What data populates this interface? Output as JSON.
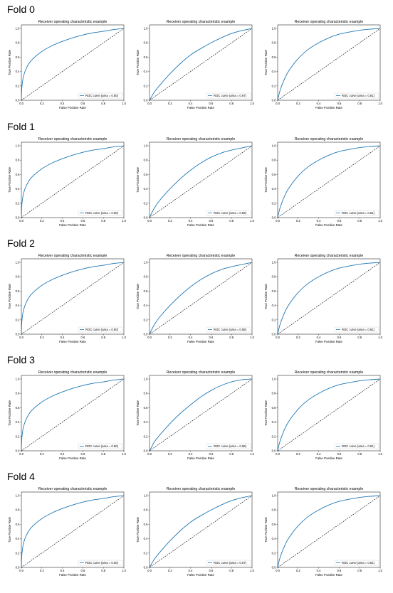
{
  "panels": [
    {
      "label": "Fold 0"
    },
    {
      "label": "Fold 1"
    },
    {
      "label": "Fold 2"
    },
    {
      "label": "Fold 3"
    },
    {
      "label": "Fold 4"
    }
  ],
  "colors": {
    "roc": "#1f77b4",
    "diagonal": "#000000"
  },
  "chart_data": [
    {
      "type": "line",
      "fold": "Fold 0",
      "title": "Receiver operating characteristic example",
      "xlabel": "False Positive Rate",
      "ylabel": "True Positive Rate",
      "xlim": [
        0,
        1
      ],
      "ylim": [
        0,
        1.05
      ],
      "legend": "lower right",
      "legend_label": "ROC curve (area = 0.80)",
      "x": [
        0,
        0.005,
        0.02,
        0.05,
        0.1,
        0.2,
        0.3,
        0.4,
        0.5,
        0.6,
        0.7,
        0.8,
        0.9,
        1.0
      ],
      "y": [
        0,
        0.18,
        0.33,
        0.45,
        0.56,
        0.68,
        0.76,
        0.82,
        0.87,
        0.91,
        0.94,
        0.96,
        0.985,
        1.0
      ]
    },
    {
      "type": "line",
      "fold": "Fold 0",
      "title": "Receiver operating characteristic example",
      "xlabel": "False Positive Rate",
      "ylabel": "True Positive Rate",
      "xlim": [
        0,
        1
      ],
      "ylim": [
        0,
        1.05
      ],
      "legend": "lower right",
      "legend_label": "ROC curve (area = 0.67)",
      "x": [
        0,
        0.02,
        0.05,
        0.1,
        0.2,
        0.3,
        0.4,
        0.5,
        0.6,
        0.7,
        0.8,
        0.9,
        1.0
      ],
      "y": [
        0,
        0.05,
        0.12,
        0.21,
        0.37,
        0.51,
        0.63,
        0.72,
        0.8,
        0.87,
        0.93,
        0.97,
        1.0
      ]
    },
    {
      "type": "line",
      "fold": "Fold 0",
      "title": "Receiver operating characteristic example",
      "xlabel": "False Positive Rate",
      "ylabel": "True Positive Rate",
      "xlim": [
        0,
        1
      ],
      "ylim": [
        0,
        1.05
      ],
      "legend": "lower right",
      "legend_label": "ROC curve (area = 0.81)",
      "x": [
        0,
        0.02,
        0.05,
        0.1,
        0.2,
        0.3,
        0.4,
        0.5,
        0.6,
        0.7,
        0.8,
        0.9,
        1.0
      ],
      "y": [
        0,
        0.12,
        0.24,
        0.39,
        0.58,
        0.71,
        0.8,
        0.87,
        0.92,
        0.95,
        0.975,
        0.99,
        1.0
      ]
    },
    {
      "type": "line",
      "fold": "Fold 1",
      "title": "Receiver operating characteristic example",
      "xlabel": "False Positive Rate",
      "ylabel": "True Positive Rate",
      "xlim": [
        0,
        1
      ],
      "ylim": [
        0,
        1.05
      ],
      "legend": "lower right",
      "legend_label": "ROC curve (area = 0.80)",
      "x": [
        0,
        0.005,
        0.02,
        0.05,
        0.1,
        0.2,
        0.3,
        0.4,
        0.5,
        0.6,
        0.7,
        0.8,
        0.9,
        1.0
      ],
      "y": [
        0,
        0.18,
        0.33,
        0.45,
        0.56,
        0.68,
        0.76,
        0.82,
        0.87,
        0.91,
        0.94,
        0.96,
        0.985,
        1.0
      ]
    },
    {
      "type": "line",
      "fold": "Fold 1",
      "title": "Receiver operating characteristic example",
      "xlabel": "False Positive Rate",
      "ylabel": "True Positive Rate",
      "xlim": [
        0,
        1
      ],
      "ylim": [
        0,
        1.05
      ],
      "legend": "lower right",
      "legend_label": "ROC curve (area = 0.69)",
      "x": [
        0,
        0.02,
        0.05,
        0.1,
        0.2,
        0.3,
        0.4,
        0.5,
        0.6,
        0.7,
        0.8,
        0.9,
        1.0
      ],
      "y": [
        0,
        0.06,
        0.14,
        0.24,
        0.4,
        0.54,
        0.66,
        0.76,
        0.84,
        0.9,
        0.94,
        0.97,
        1.0
      ]
    },
    {
      "type": "line",
      "fold": "Fold 1",
      "title": "Receiver operating characteristic example",
      "xlabel": "False Positive Rate",
      "ylabel": "True Positive Rate",
      "xlim": [
        0,
        1
      ],
      "ylim": [
        0,
        1.05
      ],
      "legend": "lower right",
      "legend_label": "ROC curve (area = 0.81)",
      "x": [
        0,
        0.02,
        0.05,
        0.1,
        0.2,
        0.3,
        0.4,
        0.5,
        0.6,
        0.7,
        0.8,
        0.9,
        1.0
      ],
      "y": [
        0,
        0.12,
        0.24,
        0.39,
        0.58,
        0.71,
        0.8,
        0.87,
        0.92,
        0.95,
        0.975,
        0.99,
        1.0
      ]
    },
    {
      "type": "line",
      "fold": "Fold 2",
      "title": "Receiver operating characteristic example",
      "xlabel": "False Positive Rate",
      "ylabel": "True Positive Rate",
      "xlim": [
        0,
        1
      ],
      "ylim": [
        0,
        1.05
      ],
      "legend": "lower right",
      "legend_label": "ROC curve (area = 0.80)",
      "x": [
        0,
        0.005,
        0.02,
        0.05,
        0.1,
        0.2,
        0.3,
        0.4,
        0.5,
        0.6,
        0.7,
        0.8,
        0.9,
        1.0
      ],
      "y": [
        0,
        0.18,
        0.33,
        0.45,
        0.56,
        0.68,
        0.76,
        0.82,
        0.87,
        0.91,
        0.94,
        0.96,
        0.985,
        1.0
      ]
    },
    {
      "type": "line",
      "fold": "Fold 2",
      "title": "Receiver operating characteristic example",
      "xlabel": "False Positive Rate",
      "ylabel": "True Positive Rate",
      "xlim": [
        0,
        1
      ],
      "ylim": [
        0,
        1.05
      ],
      "legend": "lower right",
      "legend_label": "ROC curve (area = 0.69)",
      "x": [
        0,
        0.02,
        0.05,
        0.1,
        0.2,
        0.3,
        0.4,
        0.5,
        0.6,
        0.7,
        0.8,
        0.9,
        1.0
      ],
      "y": [
        0,
        0.06,
        0.14,
        0.24,
        0.4,
        0.54,
        0.66,
        0.76,
        0.84,
        0.9,
        0.94,
        0.97,
        1.0
      ]
    },
    {
      "type": "line",
      "fold": "Fold 2",
      "title": "Receiver operating characteristic example",
      "xlabel": "False Positive Rate",
      "ylabel": "True Positive Rate",
      "xlim": [
        0,
        1
      ],
      "ylim": [
        0,
        1.05
      ],
      "legend": "lower right",
      "legend_label": "ROC curve (area = 0.81)",
      "x": [
        0,
        0.02,
        0.05,
        0.1,
        0.2,
        0.3,
        0.4,
        0.5,
        0.6,
        0.7,
        0.8,
        0.9,
        1.0
      ],
      "y": [
        0,
        0.12,
        0.24,
        0.39,
        0.58,
        0.71,
        0.8,
        0.87,
        0.92,
        0.95,
        0.975,
        0.99,
        1.0
      ]
    },
    {
      "type": "line",
      "fold": "Fold 3",
      "title": "Receiver operating characteristic example",
      "xlabel": "False Positive Rate",
      "ylabel": "True Positive Rate",
      "xlim": [
        0,
        1
      ],
      "ylim": [
        0,
        1.05
      ],
      "legend": "lower right",
      "legend_label": "ROC curve (area = 0.80)",
      "x": [
        0,
        0.005,
        0.02,
        0.05,
        0.1,
        0.2,
        0.3,
        0.4,
        0.5,
        0.6,
        0.7,
        0.8,
        0.9,
        1.0
      ],
      "y": [
        0,
        0.18,
        0.33,
        0.45,
        0.56,
        0.68,
        0.76,
        0.82,
        0.87,
        0.91,
        0.94,
        0.96,
        0.985,
        1.0
      ]
    },
    {
      "type": "line",
      "fold": "Fold 3",
      "title": "Receiver operating characteristic example",
      "xlabel": "False Positive Rate",
      "ylabel": "True Positive Rate",
      "xlim": [
        0,
        1
      ],
      "ylim": [
        0,
        1.05
      ],
      "legend": "lower right",
      "legend_label": "ROC curve (area = 0.68)",
      "x": [
        0,
        0.02,
        0.05,
        0.1,
        0.2,
        0.3,
        0.4,
        0.5,
        0.6,
        0.7,
        0.8,
        0.9,
        1.0
      ],
      "y": [
        0,
        0.05,
        0.13,
        0.22,
        0.38,
        0.52,
        0.64,
        0.75,
        0.84,
        0.91,
        0.96,
        0.99,
        1.0
      ]
    },
    {
      "type": "line",
      "fold": "Fold 3",
      "title": "Receiver operating characteristic example",
      "xlabel": "False Positive Rate",
      "ylabel": "True Positive Rate",
      "xlim": [
        0,
        1
      ],
      "ylim": [
        0,
        1.05
      ],
      "legend": "lower right",
      "legend_label": "ROC curve (area = 0.81)",
      "x": [
        0,
        0.02,
        0.05,
        0.1,
        0.2,
        0.3,
        0.4,
        0.5,
        0.6,
        0.7,
        0.8,
        0.9,
        1.0
      ],
      "y": [
        0,
        0.12,
        0.24,
        0.39,
        0.58,
        0.71,
        0.8,
        0.87,
        0.92,
        0.95,
        0.975,
        0.99,
        1.0
      ]
    },
    {
      "type": "line",
      "fold": "Fold 4",
      "title": "Receiver operating characteristic example",
      "xlabel": "False Positive Rate",
      "ylabel": "True Positive Rate",
      "xlim": [
        0,
        1
      ],
      "ylim": [
        0,
        1.05
      ],
      "legend": "lower right",
      "legend_label": "ROC curve (area = 0.80)",
      "x": [
        0,
        0.005,
        0.02,
        0.05,
        0.1,
        0.2,
        0.3,
        0.4,
        0.5,
        0.6,
        0.7,
        0.8,
        0.9,
        1.0
      ],
      "y": [
        0,
        0.18,
        0.33,
        0.45,
        0.56,
        0.68,
        0.76,
        0.82,
        0.87,
        0.91,
        0.94,
        0.96,
        0.985,
        1.0
      ]
    },
    {
      "type": "line",
      "fold": "Fold 4",
      "title": "Receiver operating characteristic example",
      "xlabel": "False Positive Rate",
      "ylabel": "True Positive Rate",
      "xlim": [
        0,
        1
      ],
      "ylim": [
        0,
        1.05
      ],
      "legend": "lower right",
      "legend_label": "ROC curve (area = 0.67)",
      "x": [
        0,
        0.02,
        0.05,
        0.1,
        0.2,
        0.3,
        0.4,
        0.5,
        0.6,
        0.7,
        0.8,
        0.9,
        1.0
      ],
      "y": [
        0,
        0.05,
        0.12,
        0.21,
        0.37,
        0.51,
        0.63,
        0.72,
        0.8,
        0.87,
        0.93,
        0.97,
        1.0
      ]
    },
    {
      "type": "line",
      "fold": "Fold 4",
      "title": "Receiver operating characteristic example",
      "xlabel": "False Positive Rate",
      "ylabel": "True Positive Rate",
      "xlim": [
        0,
        1
      ],
      "ylim": [
        0,
        1.05
      ],
      "legend": "lower right",
      "legend_label": "ROC curve (area = 0.81)",
      "x": [
        0,
        0.02,
        0.05,
        0.1,
        0.2,
        0.3,
        0.4,
        0.5,
        0.6,
        0.7,
        0.8,
        0.9,
        1.0
      ],
      "y": [
        0,
        0.12,
        0.24,
        0.39,
        0.58,
        0.71,
        0.8,
        0.87,
        0.92,
        0.95,
        0.975,
        0.99,
        1.0
      ]
    }
  ]
}
